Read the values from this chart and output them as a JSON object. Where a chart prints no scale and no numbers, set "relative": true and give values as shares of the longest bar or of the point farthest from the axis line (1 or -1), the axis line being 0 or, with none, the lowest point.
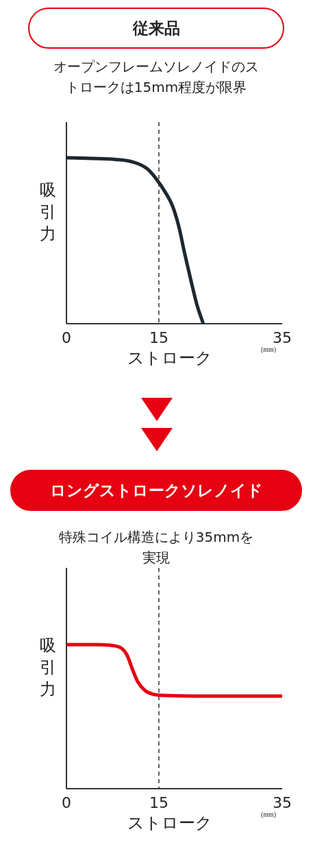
{
  "chart_data": [
    {
      "type": "line",
      "title": "従来品",
      "subtitle": "オープンフレームソレノイドのストロークは15mm程度が限界",
      "xlabel": "ストローク",
      "ylabel": "吸引力",
      "relative": true,
      "xlim": [
        0,
        35
      ],
      "xticks": [
        0,
        15,
        35
      ],
      "annotations": [
        "(mm)"
      ],
      "ref_lines": [
        {
          "axis": "x",
          "value": 15,
          "line_style": "dashed",
          "color": "#333333"
        }
      ],
      "grid": false,
      "marker": "none",
      "line_style": "solid",
      "series": [
        {
          "color": "#1e2830",
          "x": [
            0,
            4.1,
            7.9,
            10.7,
            13.1,
            14.5,
            15.9,
            17.2,
            18.2,
            19.2,
            20.2,
            21.2,
            22.2
          ],
          "values": [
            1.0,
            0.996,
            0.99,
            0.975,
            0.934,
            0.876,
            0.8,
            0.71,
            0.59,
            0.42,
            0.26,
            0.11,
            0
          ]
        }
      ]
    },
    {
      "type": "line",
      "title": "ロングストロークソレノイド",
      "subtitle": "特殊コイル構造により35mmを実現",
      "xlabel": "ストローク",
      "ylabel": "吸引力",
      "relative": true,
      "xlim": [
        0,
        35
      ],
      "xticks": [
        0,
        15,
        35
      ],
      "annotations": [
        "(mm)"
      ],
      "ref_lines": [
        {
          "axis": "x",
          "value": 15,
          "line_style": "dashed",
          "color": "#333333"
        }
      ],
      "grid": false,
      "marker": "none",
      "line_style": "solid",
      "series": [
        {
          "color": "#e60012",
          "x": [
            0,
            5.0,
            8.4,
            9.8,
            10.7,
            11.6,
            12.8,
            14.0,
            15.6,
            24.5,
            35
          ],
          "values": [
            1.0,
            1.0,
            0.986,
            0.93,
            0.83,
            0.74,
            0.68,
            0.657,
            0.648,
            0.643,
            0.643
          ]
        }
      ]
    }
  ]
}
